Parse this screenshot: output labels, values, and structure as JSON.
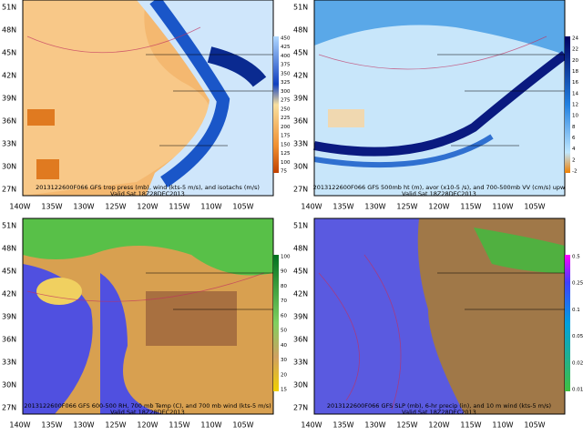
{
  "lat_labels": [
    "51N",
    "48N",
    "45N",
    "42N",
    "39N",
    "36N",
    "33N",
    "30N",
    "27N"
  ],
  "lon_labels": [
    "140W",
    "135W",
    "130W",
    "125W",
    "120W",
    "115W",
    "110W",
    "105W"
  ],
  "panels": [
    {
      "caption": "2013122600F066 GFS trop press (mb), wind (kts-5 m/s), and isotachs (m/s)",
      "valid": "Valid Sat 18Z28DEC2013",
      "colorbar": [
        "450",
        "425",
        "400",
        "375",
        "350",
        "325",
        "300",
        "275",
        "250",
        "225",
        "200",
        "175",
        "150",
        "125",
        "100",
        "75"
      ]
    },
    {
      "caption": "2013122600F066 GFS 500mb ht (m), avor (x10-5 /s), and 700-500mb VV (cm/s) upw",
      "valid": "Valid Sat 18Z28DEC2013",
      "colorbar": [
        "24",
        "22",
        "20",
        "18",
        "16",
        "14",
        "12",
        "10",
        "8",
        "6",
        "4",
        "2",
        "-2"
      ]
    },
    {
      "caption": "2013122600F066 GFS 600-500 RH, 700 mb Temp (C), and 700 mb wind (kts-5 m/s)",
      "valid": "Valid Sat 18Z28DEC2013",
      "colorbar": [
        "100",
        "90",
        "80",
        "70",
        "60",
        "50",
        "40",
        "30",
        "20",
        "15"
      ]
    },
    {
      "caption": "2013122600F066 GFS SLP (mb), 6-hr precip (in), and 10 m wind (kts-5 m/s)",
      "valid": "Valid Sat 18Z28DEC2013",
      "colorbar": [
        "0.5",
        "0.25",
        "0.1",
        "0.05",
        "0.02",
        "0.01"
      ]
    }
  ]
}
